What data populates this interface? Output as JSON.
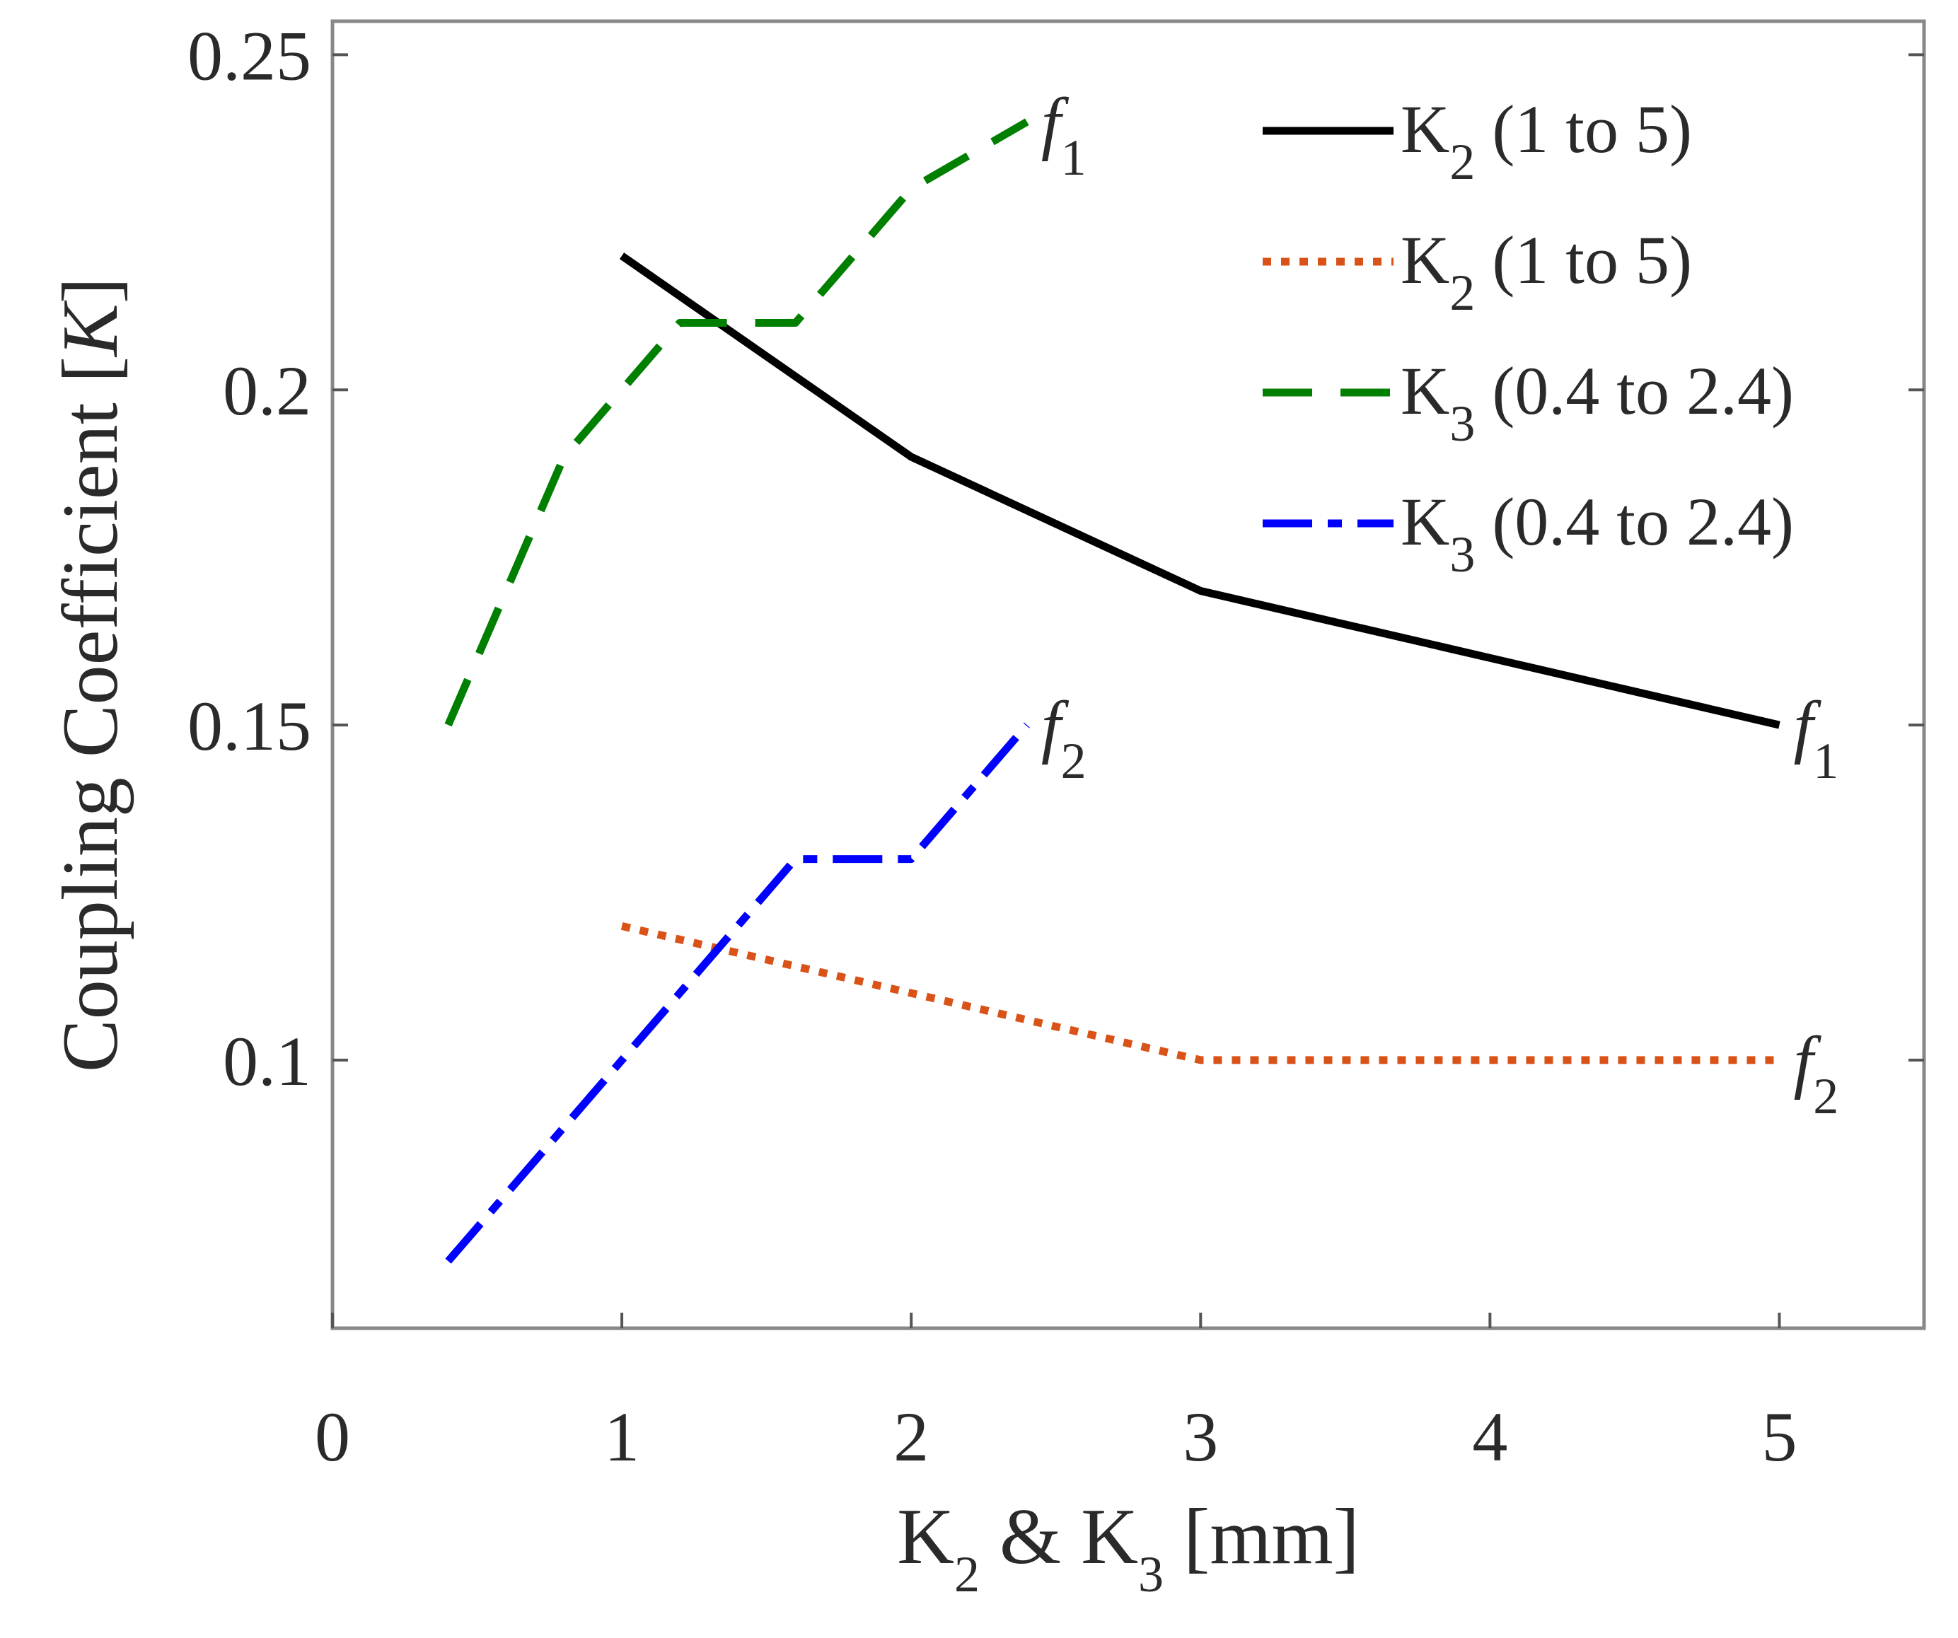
{
  "chart_data": {
    "type": "line",
    "title": "",
    "xlabel": {
      "base1": "K",
      "sub1": "2",
      "mid": " & ",
      "base2": "K",
      "sub2": "3",
      "tail": " [mm]"
    },
    "ylabel": {
      "pre": "Coupling Coefficient [",
      "var": "K",
      "post": "]"
    },
    "xlim": [
      0,
      5.5
    ],
    "ylim": [
      0.06,
      0.255
    ],
    "xticks": [
      0,
      1,
      2,
      3,
      4,
      5
    ],
    "xtick_labels": [
      "0",
      "1",
      "2",
      "3",
      "4",
      "5"
    ],
    "yticks": [
      0.1,
      0.15,
      0.2,
      0.25
    ],
    "ytick_labels": [
      "0.1",
      "0.15",
      "0.2",
      "0.25"
    ],
    "grid": false,
    "legend_position": "top-right",
    "series": [
      {
        "name": "K2 (1 to 5)",
        "legend": {
          "base": "K",
          "sub": "2",
          "rest": " (1 to 5)"
        },
        "color": "#000000",
        "style": "solid",
        "x": [
          1,
          2,
          3,
          4,
          5
        ],
        "y": [
          0.22,
          0.19,
          0.17,
          0.16,
          0.15
        ],
        "end_label": {
          "base": "f",
          "sub": "1"
        }
      },
      {
        "name": "K2 (1 to 5)",
        "legend": {
          "base": "K",
          "sub": "2",
          "rest": " (1 to 5)"
        },
        "color": "#d95319",
        "style": "dotted",
        "x": [
          1,
          2,
          3,
          4,
          5
        ],
        "y": [
          0.12,
          0.11,
          0.1,
          0.1,
          0.1
        ],
        "end_label": {
          "base": "f",
          "sub": "2"
        }
      },
      {
        "name": "K3 (0.4 to 2.4)",
        "legend": {
          "base": "K",
          "sub": "3",
          "rest": " (0.4 to 2.4)"
        },
        "color": "#007f00",
        "style": "dashed",
        "x": [
          0.4,
          0.8,
          1.2,
          1.6,
          2.0,
          2.4
        ],
        "y": [
          0.15,
          0.19,
          0.21,
          0.21,
          0.23,
          0.24
        ],
        "end_label": {
          "base": "f",
          "sub": "1"
        }
      },
      {
        "name": "K3 (0.4 to 2.4)",
        "legend": {
          "base": "K",
          "sub": "3",
          "rest": " (0.4 to 2.4)"
        },
        "color": "#0000ff",
        "style": "dashdot",
        "x": [
          0.4,
          0.8,
          1.2,
          1.6,
          2.0,
          2.4
        ],
        "y": [
          0.07,
          0.09,
          0.11,
          0.13,
          0.13,
          0.15
        ],
        "end_label": {
          "base": "f",
          "sub": "2"
        }
      }
    ]
  }
}
